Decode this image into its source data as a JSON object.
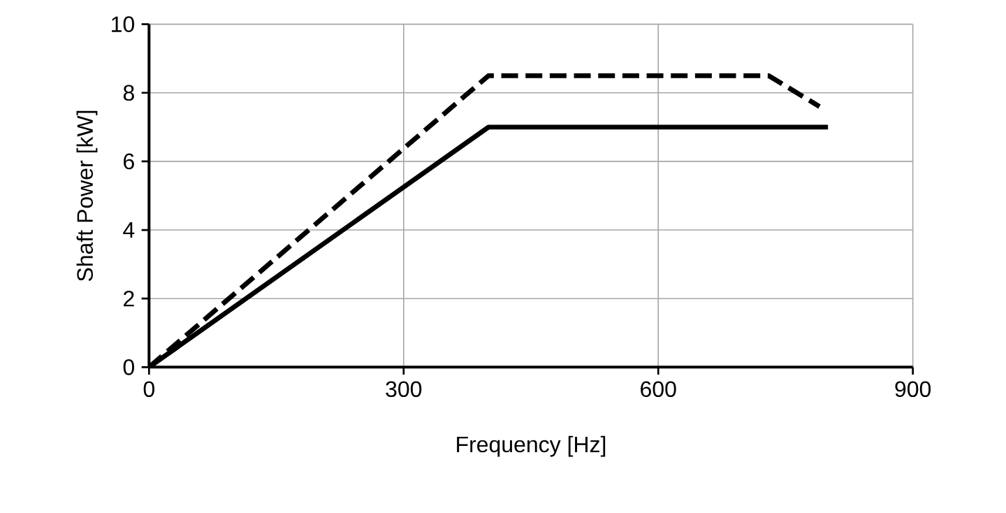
{
  "chart_data": {
    "type": "line",
    "xlabel": "Frequency [Hz]",
    "ylabel": "Shaft Power [kW]",
    "series": [
      {
        "color": "#000000",
        "line_style": "solid",
        "x": [
          0,
          400,
          800
        ],
        "values": [
          0,
          7,
          7
        ]
      },
      {
        "color": "#000000",
        "line_style": "dashed",
        "x": [
          0,
          400,
          730,
          790
        ],
        "values": [
          0,
          8.5,
          8.5,
          7.6
        ]
      }
    ],
    "xlim": [
      0,
      900
    ],
    "ylim": [
      0,
      10
    ],
    "xticks": [
      0,
      300,
      600,
      900
    ],
    "yticks": [
      0,
      2,
      4,
      6,
      8,
      10
    ],
    "grid": true,
    "marker": "none"
  }
}
